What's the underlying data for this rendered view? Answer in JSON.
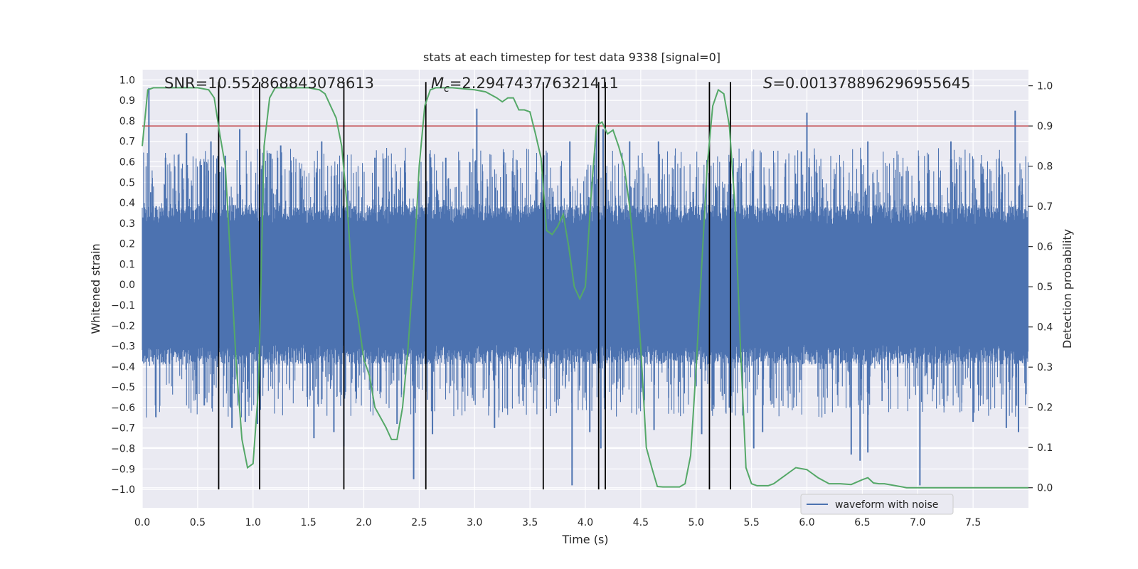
{
  "chart_data": {
    "type": "line",
    "title": "stats at each timestep for test data 9338 [signal=0]",
    "xlabel": "Time (s)",
    "ylabel": "Whitened strain",
    "y2label": "Detection probability",
    "xlim": [
      0.0,
      8.0
    ],
    "ylim": [
      -1.09,
      1.05
    ],
    "y2lim": [
      -0.05,
      1.04
    ],
    "x_ticks": [
      0.0,
      0.5,
      1.0,
      1.5,
      2.0,
      2.5,
      3.0,
      3.5,
      4.0,
      4.5,
      5.0,
      5.5,
      6.0,
      6.5,
      7.0,
      7.5
    ],
    "x_tick_labels": [
      "0.0",
      "0.5",
      "1.0",
      "1.5",
      "2.0",
      "2.5",
      "3.0",
      "3.5",
      "4.0",
      "4.5",
      "5.0",
      "5.5",
      "6.0",
      "6.5",
      "7.0",
      "7.5"
    ],
    "y_ticks": [
      -1.0,
      -0.9,
      -0.8,
      -0.7,
      -0.6,
      -0.5,
      -0.4,
      -0.3,
      -0.2,
      -0.1,
      0.0,
      0.1,
      0.2,
      0.3,
      0.4,
      0.5,
      0.6,
      0.7,
      0.8,
      0.9,
      1.0
    ],
    "y_tick_labels": [
      "−1.0",
      "−0.9",
      "−0.8",
      "−0.7",
      "−0.6",
      "−0.5",
      "−0.4",
      "−0.3",
      "−0.2",
      "−0.1",
      "0.0",
      "0.1",
      "0.2",
      "0.3",
      "0.4",
      "0.5",
      "0.6",
      "0.7",
      "0.8",
      "0.9",
      "1.0"
    ],
    "y2_ticks": [
      0.0,
      0.1,
      0.2,
      0.3,
      0.4,
      0.5,
      0.6,
      0.7,
      0.8,
      0.9,
      1.0
    ],
    "y2_tick_labels": [
      "0.0",
      "0.1",
      "0.2",
      "0.3",
      "0.4",
      "0.5",
      "0.6",
      "0.7",
      "0.8",
      "0.9",
      "1.0"
    ],
    "grid": true,
    "legend": {
      "placement": "lower-right",
      "entries": [
        "waveform with noise"
      ]
    },
    "annotations": {
      "snr": "SNR=10.552868843078613",
      "mc_symbol": "M",
      "mc_sub": "c",
      "mc_value": "=2.294743776321411",
      "s_symbol": "S",
      "s_value": "=0.001378896296955645"
    },
    "threshold": {
      "value": 0.9,
      "axis": "y2",
      "color": "#c44e52"
    },
    "boundary_markers_x": [
      0.69,
      1.06,
      1.82,
      2.56,
      3.62,
      4.12,
      4.18,
      5.12,
      5.31
    ],
    "boundary_marker_yrange": [
      -1.0,
      0.99
    ],
    "waveform": {
      "name": "waveform with noise",
      "color": "#4c72b0",
      "duration_s": 8.0,
      "core_amplitude": 0.39,
      "spikes": [
        [
          0.06,
          0.96
        ],
        [
          0.21,
          0.62
        ],
        [
          0.4,
          0.74
        ],
        [
          0.56,
          0.6
        ],
        [
          0.56,
          -0.59
        ],
        [
          0.62,
          0.7
        ],
        [
          0.7,
          0.55
        ],
        [
          0.75,
          0.63
        ],
        [
          0.8,
          -0.6
        ],
        [
          0.81,
          -0.7
        ],
        [
          0.88,
          0.76
        ],
        [
          0.93,
          -0.67
        ],
        [
          1.04,
          -0.68
        ],
        [
          1.16,
          0.64
        ],
        [
          1.25,
          0.68
        ],
        [
          1.55,
          -0.75
        ],
        [
          1.62,
          0.7
        ],
        [
          1.73,
          -0.72
        ],
        [
          1.82,
          -0.79
        ],
        [
          2.1,
          0.62
        ],
        [
          2.3,
          -0.68
        ],
        [
          2.45,
          -0.95
        ],
        [
          2.62,
          -0.73
        ],
        [
          2.74,
          0.62
        ],
        [
          3.02,
          0.86
        ],
        [
          3.18,
          -0.7
        ],
        [
          3.62,
          0.62
        ],
        [
          3.86,
          0.7
        ],
        [
          3.88,
          -0.98
        ],
        [
          4.04,
          -0.72
        ],
        [
          4.1,
          0.76
        ],
        [
          4.14,
          -0.8
        ],
        [
          4.16,
          0.76
        ],
        [
          4.4,
          0.7
        ],
        [
          4.62,
          -0.71
        ],
        [
          5.05,
          -0.73
        ],
        [
          5.3,
          -0.6
        ],
        [
          5.3,
          0.6
        ],
        [
          5.52,
          -0.8
        ],
        [
          5.6,
          -0.72
        ],
        [
          5.95,
          0.65
        ],
        [
          6.0,
          0.84
        ],
        [
          6.4,
          -0.83
        ],
        [
          6.48,
          -0.86
        ],
        [
          6.55,
          -0.82
        ],
        [
          6.55,
          0.7
        ],
        [
          7.02,
          -0.98
        ],
        [
          7.3,
          0.7
        ],
        [
          7.5,
          -0.67
        ],
        [
          7.8,
          -0.7
        ],
        [
          7.88,
          0.85
        ],
        [
          7.91,
          -0.72
        ],
        [
          4.66,
          0.7
        ]
      ]
    },
    "detection_probability": {
      "color": "#55a868",
      "x": [
        0.0,
        0.05,
        0.1,
        0.2,
        0.3,
        0.4,
        0.5,
        0.6,
        0.65,
        0.7,
        0.75,
        0.8,
        0.85,
        0.9,
        0.95,
        1.0,
        1.05,
        1.1,
        1.15,
        1.2,
        1.3,
        1.4,
        1.5,
        1.6,
        1.65,
        1.7,
        1.75,
        1.8,
        1.85,
        1.9,
        1.95,
        2.0,
        2.05,
        2.1,
        2.2,
        2.25,
        2.3,
        2.35,
        2.4,
        2.45,
        2.5,
        2.55,
        2.6,
        2.65,
        2.7,
        2.8,
        3.0,
        3.1,
        3.2,
        3.25,
        3.3,
        3.35,
        3.4,
        3.45,
        3.5,
        3.55,
        3.6,
        3.65,
        3.7,
        3.75,
        3.8,
        3.85,
        3.9,
        3.95,
        4.0,
        4.05,
        4.1,
        4.15,
        4.2,
        4.25,
        4.3,
        4.35,
        4.4,
        4.45,
        4.5,
        4.55,
        4.6,
        4.65,
        4.7,
        4.8,
        4.85,
        4.9,
        4.95,
        5.0,
        5.05,
        5.1,
        5.15,
        5.2,
        5.25,
        5.3,
        5.35,
        5.4,
        5.45,
        5.5,
        5.55,
        5.6,
        5.65,
        5.7,
        5.8,
        5.9,
        6.0,
        6.1,
        6.2,
        6.3,
        6.4,
        6.5,
        6.55,
        6.6,
        6.65,
        6.7,
        6.8,
        6.9,
        7.0,
        7.5,
        8.0
      ],
      "y": [
        0.85,
        0.99,
        0.995,
        0.995,
        0.995,
        0.995,
        0.995,
        0.99,
        0.97,
        0.88,
        0.8,
        0.55,
        0.3,
        0.12,
        0.05,
        0.06,
        0.25,
        0.85,
        0.97,
        0.995,
        0.995,
        0.995,
        0.995,
        0.99,
        0.98,
        0.95,
        0.92,
        0.85,
        0.7,
        0.5,
        0.42,
        0.32,
        0.28,
        0.2,
        0.15,
        0.12,
        0.12,
        0.2,
        0.35,
        0.55,
        0.8,
        0.95,
        0.99,
        0.995,
        0.995,
        0.995,
        0.99,
        0.985,
        0.97,
        0.96,
        0.97,
        0.97,
        0.94,
        0.94,
        0.935,
        0.88,
        0.82,
        0.64,
        0.63,
        0.65,
        0.68,
        0.6,
        0.5,
        0.47,
        0.5,
        0.72,
        0.9,
        0.91,
        0.88,
        0.89,
        0.85,
        0.8,
        0.7,
        0.55,
        0.35,
        0.1,
        0.05,
        0.003,
        0.002,
        0.002,
        0.002,
        0.01,
        0.08,
        0.3,
        0.55,
        0.8,
        0.95,
        0.99,
        0.98,
        0.9,
        0.7,
        0.35,
        0.05,
        0.01,
        0.005,
        0.005,
        0.005,
        0.01,
        0.03,
        0.05,
        0.045,
        0.025,
        0.01,
        0.01,
        0.008,
        0.02,
        0.025,
        0.012,
        0.01,
        0.01,
        0.005,
        0.0,
        0.0,
        0.0,
        0.0
      ]
    }
  }
}
